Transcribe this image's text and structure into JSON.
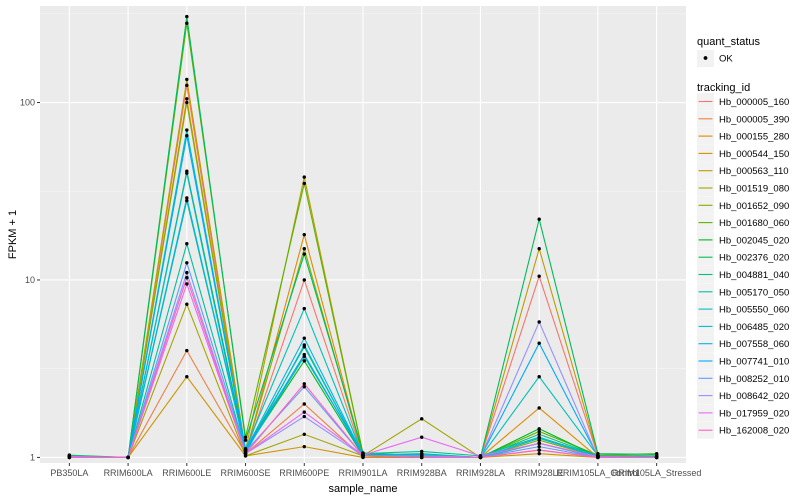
{
  "chart_data": {
    "type": "line",
    "xlabel": "sample_name",
    "ylabel": "FPKM + 1",
    "y_scale": "log10",
    "ylim": [
      0.93,
      350
    ],
    "y_ticks": [
      1,
      10,
      100
    ],
    "y_tick_labels": [
      "1",
      "10",
      "100"
    ],
    "grid": true,
    "legend_position": "right",
    "categories": [
      "PB350LA",
      "RRIM600LA",
      "RRIM600LE",
      "RRIM600SE",
      "RRIM600PE",
      "RRIM901LA",
      "RRIM928BA",
      "RRIM928LA",
      "RRIM928LE",
      "RRIM105LA_Control",
      "RRIM105LA_Stressed"
    ],
    "shape_legend": {
      "title": "quant_status",
      "entries": [
        "OK"
      ]
    },
    "color_legend_title": "tracking_id",
    "series": [
      {
        "name": "Hb_000005_160",
        "color": "#F8766D",
        "values": [
          1.02,
          1.0,
          125,
          1.05,
          10.0,
          1.02,
          1.0,
          1.0,
          10.5,
          1.02,
          1.01
        ]
      },
      {
        "name": "Hb_000005_390",
        "color": "#EE8044",
        "values": [
          1.0,
          1.0,
          4.0,
          1.05,
          2.0,
          1.0,
          1.0,
          1.0,
          1.1,
          1.0,
          1.0
        ]
      },
      {
        "name": "Hb_000155_280",
        "color": "#E08B00",
        "values": [
          1.01,
          1.0,
          105,
          1.05,
          18.0,
          1.02,
          1.0,
          1.0,
          1.9,
          1.0,
          1.01
        ]
      },
      {
        "name": "Hb_000544_150",
        "color": "#CF9400",
        "values": [
          1.0,
          1.0,
          2.85,
          1.02,
          1.15,
          1.0,
          1.0,
          1.0,
          1.05,
          1.0,
          1.0
        ]
      },
      {
        "name": "Hb_000563_110",
        "color": "#BB9D00",
        "values": [
          1.01,
          1.0,
          135,
          1.1,
          38.0,
          1.05,
          1.0,
          1.0,
          15.0,
          1.03,
          1.02
        ]
      },
      {
        "name": "Hb_001519_080",
        "color": "#A3A500",
        "values": [
          1.0,
          1.0,
          7.3,
          1.02,
          1.35,
          1.02,
          1.65,
          1.0,
          1.2,
          1.01,
          1.0
        ]
      },
      {
        "name": "Hb_001652_090",
        "color": "#85AD00",
        "values": [
          1.01,
          1.0,
          100,
          1.05,
          15.0,
          1.02,
          1.0,
          1.0,
          1.25,
          1.01,
          1.0
        ]
      },
      {
        "name": "Hb_001680_060",
        "color": "#5BB300",
        "values": [
          1.02,
          1.0,
          280,
          1.3,
          35.0,
          1.05,
          1.03,
          1.0,
          1.4,
          1.03,
          1.05
        ]
      },
      {
        "name": "Hb_002045_020",
        "color": "#00B81F",
        "values": [
          1.0,
          1.0,
          41,
          1.1,
          3.5,
          1.02,
          1.0,
          1.0,
          1.45,
          1.01,
          1.0
        ]
      },
      {
        "name": "Hb_002376_020",
        "color": "#00BC59",
        "values": [
          1.03,
          1.0,
          305,
          1.25,
          14.0,
          1.06,
          1.02,
          1.0,
          22.0,
          1.05,
          1.04
        ]
      },
      {
        "name": "Hb_004881_040",
        "color": "#00BF7D",
        "values": [
          1.0,
          1.0,
          28,
          1.1,
          4.2,
          1.03,
          1.05,
          1.0,
          1.35,
          1.02,
          1.01
        ]
      },
      {
        "name": "Hb_005170_050",
        "color": "#00C19C",
        "values": [
          1.01,
          1.0,
          16,
          1.08,
          3.7,
          1.05,
          1.08,
          1.02,
          1.3,
          1.02,
          1.02
        ]
      },
      {
        "name": "Hb_005550_060",
        "color": "#00C0B8",
        "values": [
          1.02,
          1.0,
          70,
          1.12,
          6.9,
          1.02,
          1.04,
          1.0,
          2.85,
          1.02,
          1.01
        ]
      },
      {
        "name": "Hb_006485_020",
        "color": "#00BCD1",
        "values": [
          1.0,
          1.0,
          40,
          1.05,
          4.3,
          1.02,
          1.02,
          1.0,
          1.2,
          1.0,
          1.0
        ]
      },
      {
        "name": "Hb_007558_060",
        "color": "#00B5E7",
        "values": [
          1.01,
          1.0,
          29,
          1.1,
          4.7,
          1.03,
          1.03,
          1.0,
          1.28,
          1.01,
          1.0
        ]
      },
      {
        "name": "Hb_007741_010",
        "color": "#00A9FF",
        "values": [
          1.01,
          1.0,
          65,
          1.1,
          3.8,
          1.03,
          1.02,
          1.0,
          4.4,
          1.01,
          1.0
        ]
      },
      {
        "name": "Hb_008252_010",
        "color": "#619CFF",
        "values": [
          1.0,
          1.0,
          12.5,
          1.08,
          2.5,
          1.02,
          1.02,
          1.0,
          1.15,
          1.0,
          1.0
        ]
      },
      {
        "name": "Hb_008642_020",
        "color": "#9590FF",
        "values": [
          1.0,
          1.0,
          11.0,
          1.05,
          1.7,
          1.02,
          1.02,
          1.0,
          5.8,
          1.0,
          1.0
        ]
      },
      {
        "name": "Hb_017959_020",
        "color": "#E76BF3",
        "values": [
          1.01,
          1.0,
          9.5,
          1.05,
          1.8,
          1.03,
          1.3,
          1.02,
          1.2,
          1.01,
          1.0
        ]
      },
      {
        "name": "Hb_162008_020",
        "color": "#FF62BC",
        "values": [
          1.0,
          1.0,
          10.3,
          1.05,
          2.6,
          1.02,
          1.0,
          1.0,
          1.1,
          1.0,
          1.0
        ]
      }
    ]
  }
}
